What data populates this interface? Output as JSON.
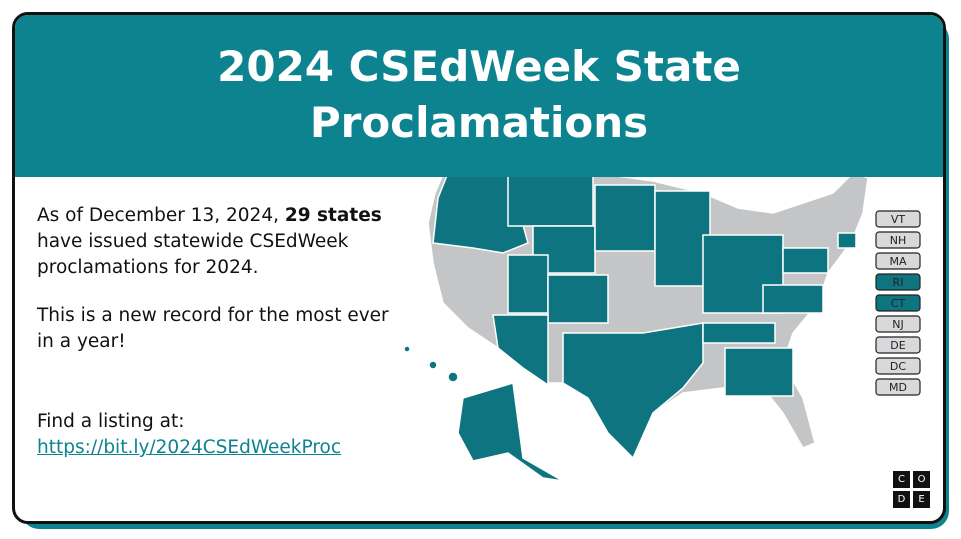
{
  "header": {
    "title_line1": "2024 CSEdWeek State",
    "title_line2": "Proclamations"
  },
  "body": {
    "para1_before": "As of December 13, 2024, ",
    "para1_bold": "29 states",
    "para1_after": " have issued statewide CSEdWeek proclamations for 2024.",
    "para2": "This is a new record for the most ever in a year!",
    "find_label": "Find a listing at:",
    "link": "https://bit.ly/2024CSEdWeekProc"
  },
  "small_states": [
    {
      "label": "VT",
      "issued": false
    },
    {
      "label": "NH",
      "issued": false
    },
    {
      "label": "MA",
      "issued": false
    },
    {
      "label": "RI",
      "issued": true
    },
    {
      "label": "CT",
      "issued": true
    },
    {
      "label": "NJ",
      "issued": false
    },
    {
      "label": "DE",
      "issued": false
    },
    {
      "label": "DC",
      "issued": false
    },
    {
      "label": "MD",
      "issued": false
    }
  ],
  "logo": [
    "C",
    "O",
    "D",
    "E"
  ]
}
